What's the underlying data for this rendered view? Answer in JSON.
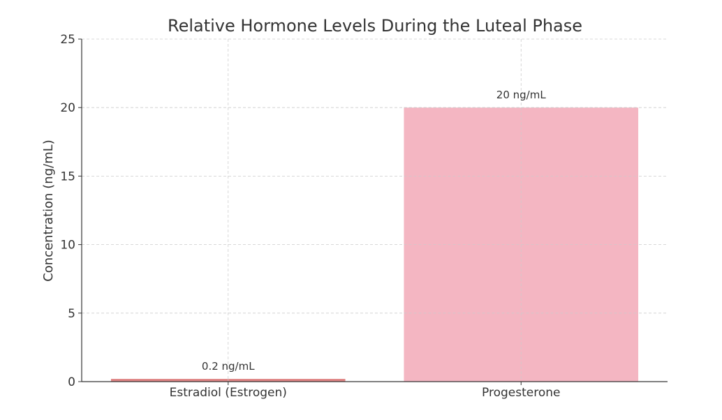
{
  "chart_data": {
    "type": "bar",
    "title": "Relative Hormone Levels During the Luteal Phase",
    "xlabel": "",
    "ylabel": "Concentration (ng/mL)",
    "categories": [
      "Estradiol (Estrogen)",
      "Progesterone"
    ],
    "values": [
      0.2,
      20
    ],
    "data_labels": [
      "0.2 ng/mL",
      "20 ng/mL"
    ],
    "colors": [
      "#e08585",
      "#f4b6c2"
    ],
    "ylim": [
      0,
      25
    ],
    "yticks": [
      0,
      5,
      10,
      15,
      20,
      25
    ],
    "ytick_labels": [
      "0",
      "5",
      "10",
      "15",
      "20",
      "25"
    ],
    "grid": true,
    "legend": "none"
  }
}
